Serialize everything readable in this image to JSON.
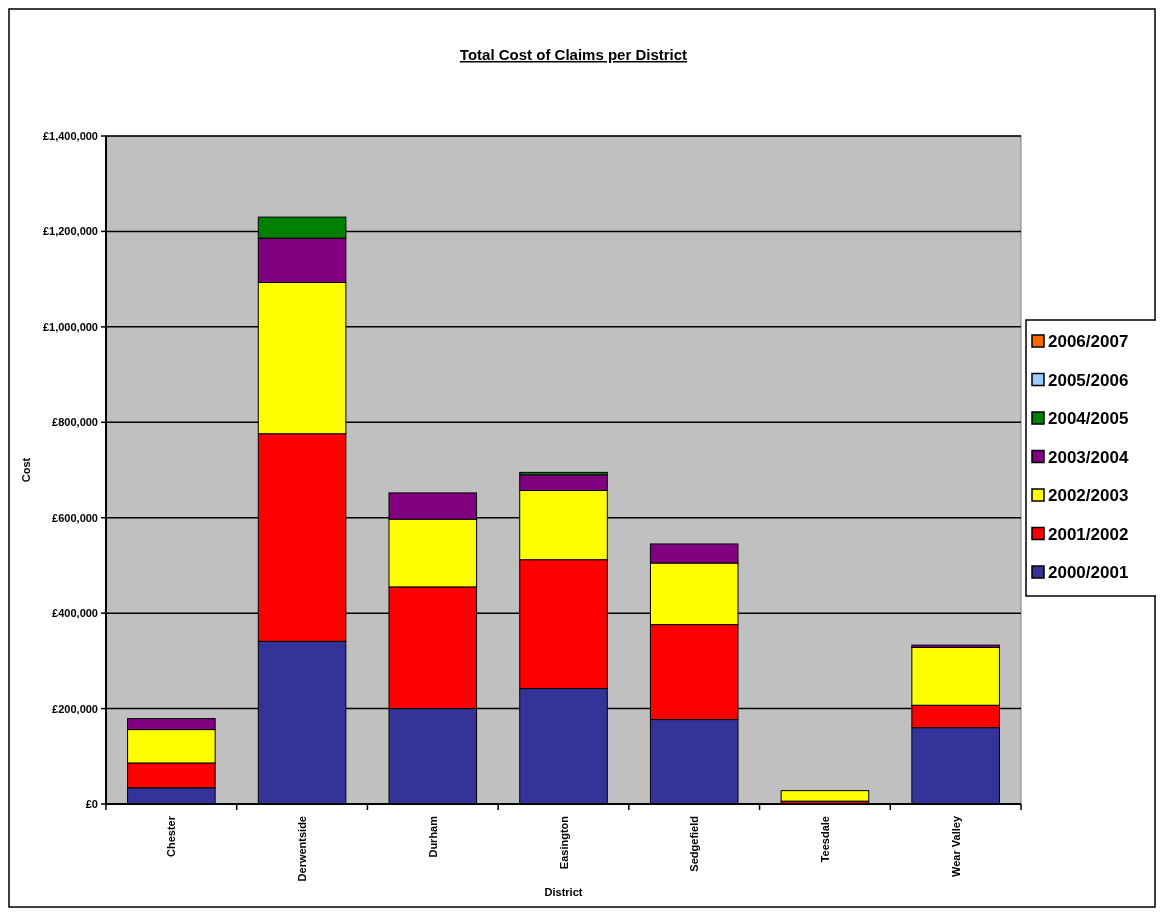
{
  "chart_data": {
    "type": "bar",
    "title": "Total Cost of Claims per District",
    "xlabel": "District",
    "ylabel": "Cost",
    "stacked": true,
    "grid": "y",
    "legend": "right",
    "categories": [
      "Chester",
      "Derwentside",
      "Durham",
      "Easington",
      "Sedgefield",
      "Teesdale",
      "Wear Valley"
    ],
    "ylim": [
      0,
      1400000
    ],
    "yticks": [
      {
        "value": 0,
        "label": "£0"
      },
      {
        "value": 200000,
        "label": "£200,000"
      },
      {
        "value": 400000,
        "label": "£400,000"
      },
      {
        "value": 600000,
        "label": "£600,000"
      },
      {
        "value": 800000,
        "label": "£800,000"
      },
      {
        "value": 1000000,
        "label": "£1,000,000"
      },
      {
        "value": 1200000,
        "label": "£1,200,000"
      },
      {
        "value": 1400000,
        "label": "£1,400,000"
      }
    ],
    "series": [
      {
        "name": "2000/2001",
        "color": "#333399",
        "values": [
          34000,
          341000,
          200000,
          242000,
          177000,
          0,
          160000
        ]
      },
      {
        "name": "2001/2002",
        "color": "#ff0000",
        "values": [
          52000,
          435000,
          255000,
          270000,
          199000,
          6000,
          47000
        ]
      },
      {
        "name": "2002/2003",
        "color": "#ffff00",
        "values": [
          70000,
          317000,
          142000,
          145000,
          129000,
          22000,
          121000
        ]
      },
      {
        "name": "2003/2004",
        "color": "#800080",
        "values": [
          23000,
          93000,
          55000,
          33000,
          40000,
          0,
          5000
        ]
      },
      {
        "name": "2004/2005",
        "color": "#008000",
        "values": [
          0,
          44000,
          0,
          5000,
          0,
          0,
          0
        ]
      },
      {
        "name": "2005/2006",
        "color": "#99ccff",
        "values": [
          0,
          0,
          0,
          0,
          0,
          0,
          0
        ]
      },
      {
        "name": "2006/2007",
        "color": "#ff6600",
        "values": [
          0,
          0,
          0,
          0,
          0,
          0,
          0
        ]
      }
    ]
  }
}
